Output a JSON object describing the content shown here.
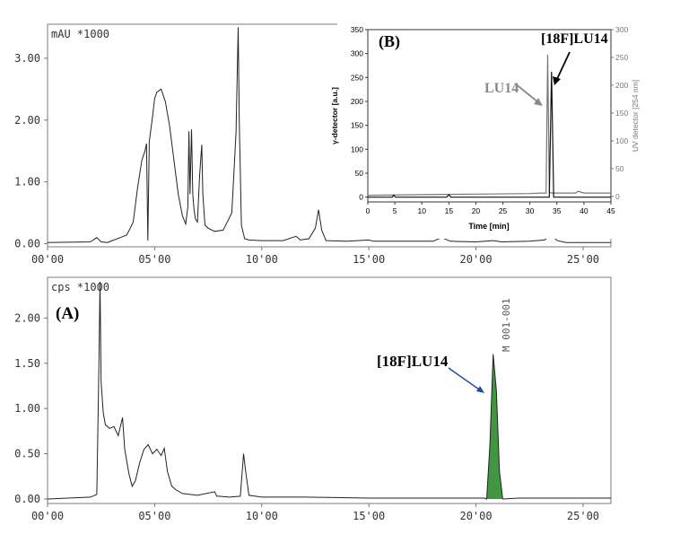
{
  "chart_data": [
    {
      "id": "uv",
      "type": "line",
      "unit_label": "mAU *1000",
      "xlim": [
        0,
        26.3
      ],
      "ylim": [
        -0.05,
        3.55
      ],
      "x_ticks": [
        0,
        5,
        10,
        15,
        20,
        25
      ],
      "x_tick_labels": [
        "00'00",
        "05'00",
        "10'00",
        "15'00",
        "20'00",
        "25'00"
      ],
      "y_ticks": [
        0,
        1,
        2,
        3
      ],
      "y_tick_labels": [
        "0.00",
        "1.00",
        "2.00",
        "3.00"
      ],
      "series": [
        {
          "x": [
            0,
            2.0,
            2.3,
            2.5,
            2.8,
            3.1,
            3.4,
            3.7,
            4.0,
            4.2,
            4.4,
            4.55,
            4.62,
            4.68,
            4.75,
            4.9,
            5.0,
            5.1,
            5.3,
            5.5,
            5.7,
            5.9,
            6.1,
            6.3,
            6.45,
            6.55,
            6.6,
            6.65,
            6.72,
            6.78,
            6.84,
            6.9,
            7.0,
            7.1,
            7.2,
            7.25,
            7.35,
            7.5,
            7.8,
            8.2,
            8.6,
            8.8,
            8.9,
            8.95,
            9.05,
            9.2,
            9.4,
            10.0,
            11.0,
            11.6,
            11.8,
            12.2,
            12.5,
            12.65,
            12.8,
            13.0,
            14.0,
            15.0,
            15.2,
            16.0,
            18.0,
            18.4,
            18.8,
            20.0,
            20.8,
            21.2,
            22.5,
            23.2,
            23.5,
            23.8,
            24.2,
            25.0,
            26.3
          ],
          "y": [
            0.02,
            0.03,
            0.1,
            0.03,
            0.02,
            0.06,
            0.1,
            0.14,
            0.35,
            0.9,
            1.35,
            1.5,
            1.62,
            0.05,
            1.65,
            2.05,
            2.35,
            2.45,
            2.5,
            2.3,
            1.9,
            1.35,
            0.8,
            0.45,
            0.32,
            0.6,
            1.82,
            0.8,
            1.85,
            0.8,
            0.55,
            0.4,
            0.35,
            1.1,
            1.6,
            0.8,
            0.3,
            0.25,
            0.2,
            0.22,
            0.5,
            1.8,
            3.5,
            2.0,
            0.3,
            0.08,
            0.06,
            0.05,
            0.05,
            0.12,
            0.06,
            0.08,
            0.25,
            0.55,
            0.22,
            0.05,
            0.04,
            0.06,
            0.04,
            0.04,
            0.04,
            0.1,
            0.04,
            0.03,
            0.05,
            0.03,
            0.04,
            0.06,
            0.14,
            0.05,
            0.02,
            0.02,
            0.02
          ]
        }
      ]
    },
    {
      "id": "radio",
      "type": "line",
      "unit_label": "cps *1000",
      "panel_label": "(A)",
      "xlim": [
        0,
        26.3
      ],
      "ylim": [
        -0.05,
        2.45
      ],
      "x_ticks": [
        0,
        5,
        10,
        15,
        20,
        25
      ],
      "x_tick_labels": [
        "00'00",
        "05'00",
        "10'00",
        "15'00",
        "20'00",
        "25'00"
      ],
      "y_ticks": [
        0,
        0.5,
        1.0,
        1.5,
        2.0
      ],
      "y_tick_labels": [
        "0.00",
        "0.50",
        "1.00",
        "1.50",
        "2.00"
      ],
      "peak_label": "M 001-001",
      "annotation": "[18F]LU14",
      "highlight_peak": {
        "x": [
          20.5,
          20.65,
          20.8,
          20.95,
          21.1,
          21.25
        ],
        "y": [
          0.0,
          0.6,
          1.6,
          1.2,
          0.3,
          0.0
        ]
      },
      "series": [
        {
          "x": [
            0,
            2.0,
            2.3,
            2.4,
            2.45,
            2.5,
            2.6,
            2.7,
            2.9,
            3.1,
            3.3,
            3.5,
            3.6,
            3.8,
            3.95,
            4.1,
            4.3,
            4.5,
            4.7,
            4.9,
            5.1,
            5.3,
            5.45,
            5.6,
            5.8,
            6.0,
            6.3,
            7.0,
            7.8,
            7.9,
            8.0,
            8.5,
            9.0,
            9.15,
            9.25,
            9.4,
            10.0,
            12.0,
            15.0,
            18.0,
            20.4,
            20.5,
            20.65,
            20.8,
            20.95,
            21.1,
            21.25,
            22.0,
            26.3
          ],
          "y": [
            0.0,
            0.02,
            0.05,
            1.5,
            2.4,
            1.3,
            0.95,
            0.82,
            0.78,
            0.8,
            0.7,
            0.9,
            0.55,
            0.28,
            0.14,
            0.2,
            0.4,
            0.55,
            0.6,
            0.5,
            0.55,
            0.48,
            0.56,
            0.3,
            0.14,
            0.1,
            0.06,
            0.04,
            0.08,
            0.03,
            0.03,
            0.02,
            0.03,
            0.5,
            0.3,
            0.04,
            0.02,
            0.02,
            0.01,
            0.01,
            0.01,
            0.0,
            0.6,
            1.6,
            1.2,
            0.3,
            0.0,
            0.01,
            0.01
          ]
        }
      ]
    },
    {
      "id": "inset",
      "type": "line",
      "panel_label": "(B)",
      "xlabel": "Time [min]",
      "ylabel_left": "γ-detector [a.u.]",
      "ylabel_right": "UV detector [254 nm]",
      "xlim": [
        0,
        45
      ],
      "ylim_left": [
        -10,
        350
      ],
      "ylim_right": [
        -10,
        300
      ],
      "x_ticks": [
        0,
        5,
        10,
        15,
        20,
        25,
        30,
        35,
        40,
        45
      ],
      "y_ticks_left": [
        0,
        50,
        100,
        150,
        200,
        250,
        300,
        350
      ],
      "y_ticks_right": [
        0,
        50,
        100,
        150,
        200,
        250,
        300
      ],
      "annotations": [
        "LU14",
        "[18F]LU14"
      ],
      "series": [
        {
          "name": "UV",
          "axis": "right",
          "x": [
            0,
            10,
            20,
            30,
            32,
            33.0,
            33.3,
            33.6,
            34.0,
            36,
            38.5,
            38.9,
            40,
            45
          ],
          "y": [
            2,
            3,
            4,
            5,
            6,
            6,
            255,
            8,
            6,
            6,
            6,
            9,
            6,
            6
          ]
        },
        {
          "name": "γ",
          "axis": "left",
          "x": [
            0,
            4.5,
            4.8,
            5.1,
            10,
            14.6,
            15.0,
            15.4,
            20,
            30,
            33.6,
            34.0,
            34.4,
            36,
            40,
            45
          ],
          "y": [
            0,
            0,
            4,
            0,
            0,
            0,
            5,
            0,
            0,
            0,
            0,
            262,
            0,
            0,
            0,
            0
          ]
        }
      ]
    }
  ]
}
